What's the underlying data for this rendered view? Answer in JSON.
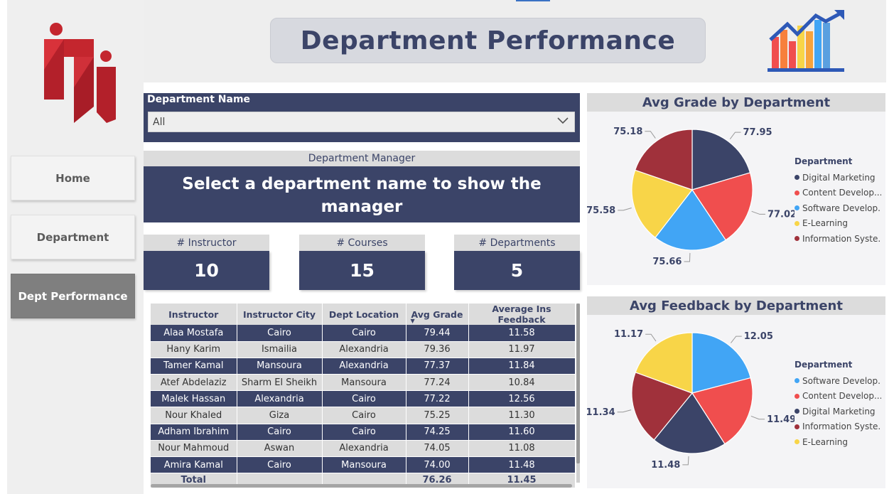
{
  "header": {
    "title": "Department Performance"
  },
  "sidebar": {
    "items": [
      {
        "label": "Home",
        "active": false
      },
      {
        "label": "Department",
        "active": false
      },
      {
        "label": "Dept Performance",
        "active": true
      }
    ]
  },
  "slicer": {
    "label": "Department Name",
    "value": "All"
  },
  "manager": {
    "title": "Department Manager",
    "message": "Select a department name to show the manager"
  },
  "cards": [
    {
      "title": "# Instructor",
      "value": "10"
    },
    {
      "title": "# Courses",
      "value": "15"
    },
    {
      "title": "# Departments",
      "value": "5"
    }
  ],
  "table": {
    "columns": [
      "Instructor",
      "Instructor City",
      "Dept Location",
      "Avg Grade",
      "Average Ins Feedback"
    ],
    "rows": [
      [
        "Alaa Mostafa",
        "Cairo",
        "Cairo",
        "79.44",
        "11.58"
      ],
      [
        "Hany Karim",
        "Ismailia",
        "Alexandria",
        "79.36",
        "11.97"
      ],
      [
        "Tamer Kamal",
        "Mansoura",
        "Alexandria",
        "77.37",
        "11.84"
      ],
      [
        "Atef Abdelaziz",
        "Sharm El Sheikh",
        "Mansoura",
        "77.24",
        "10.84"
      ],
      [
        "Malek Hassan",
        "Alexandria",
        "Cairo",
        "77.22",
        "12.56"
      ],
      [
        "Nour Khaled",
        "Giza",
        "Cairo",
        "75.25",
        "11.30"
      ],
      [
        "Adham Ibrahim",
        "Cairo",
        "Cairo",
        "74.25",
        "11.60"
      ],
      [
        "Nour Mahmoud",
        "Aswan",
        "Alexandria",
        "74.05",
        "11.08"
      ],
      [
        "Amira Kamal",
        "Cairo",
        "Mansoura",
        "74.00",
        "11.48"
      ]
    ],
    "total": [
      "Total",
      "",
      "",
      "76.26",
      "11.45"
    ]
  },
  "chart_data": [
    {
      "type": "pie",
      "title": "Avg Grade by Department",
      "legend_title": "Department",
      "legend_placement": "right",
      "categories": [
        "Digital Marketing",
        "Content Develop...",
        "Software Develop...",
        "E-Learning",
        "Information Syste..."
      ],
      "values": [
        77.95,
        77.02,
        75.66,
        75.58,
        75.18
      ],
      "colors": [
        "#3b4468",
        "#f04e4e",
        "#41a5f5",
        "#f8d548",
        "#a0313b"
      ]
    },
    {
      "type": "pie",
      "title": "Avg Feedback by Department",
      "legend_title": "Department",
      "legend_placement": "right",
      "categories": [
        "Software Develop...",
        "Content Develop...",
        "Digital Marketing",
        "Information Syste...",
        "E-Learning"
      ],
      "values": [
        12.05,
        11.49,
        11.48,
        11.34,
        11.17
      ],
      "colors": [
        "#41a5f5",
        "#f04e4e",
        "#3b4468",
        "#a0313b",
        "#f8d548"
      ]
    }
  ]
}
